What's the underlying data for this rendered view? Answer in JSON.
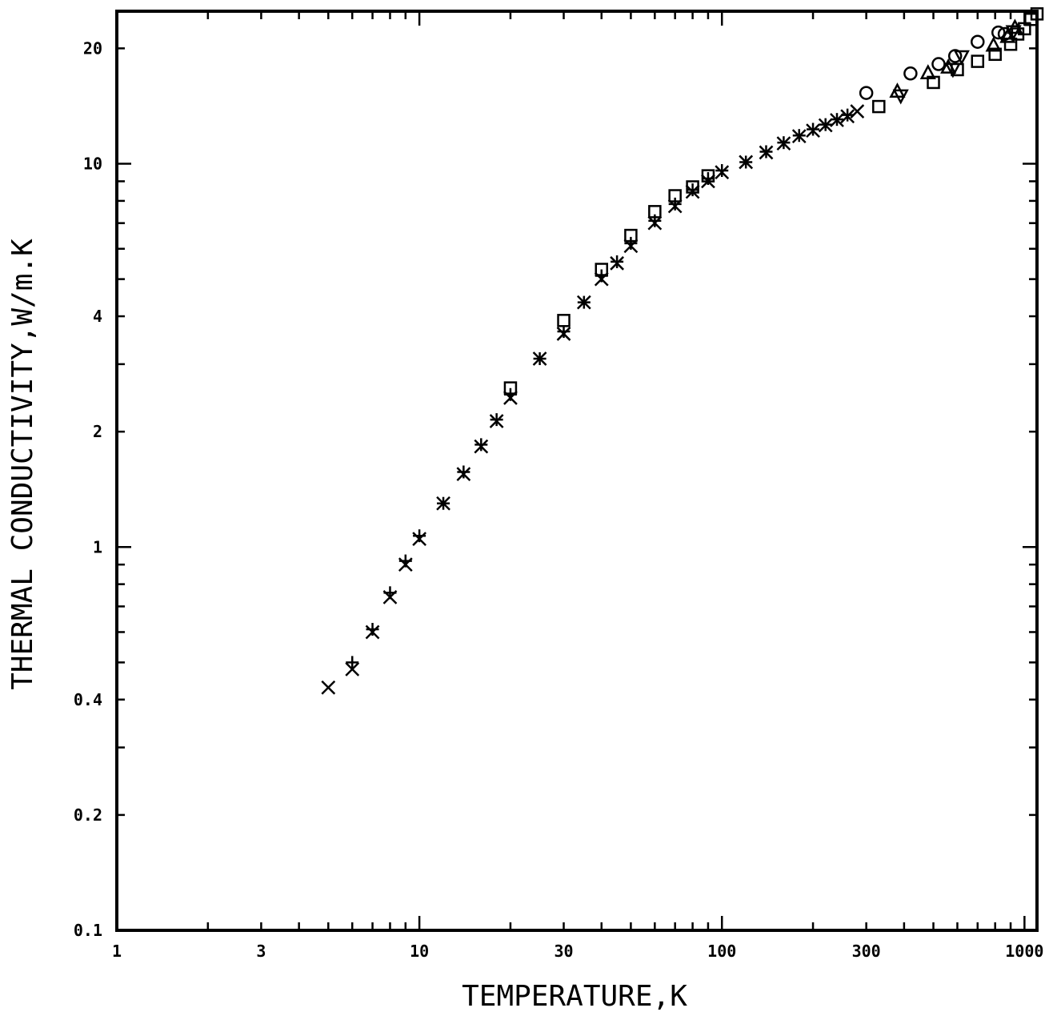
{
  "chart_data": {
    "type": "scatter",
    "xlabel": "TEMPERATURE,K",
    "ylabel": "THERMAL CONDUCTIVITY,W/m.K",
    "xscale": "log",
    "yscale": "log",
    "xlim": [
      1,
      1100
    ],
    "ylim": [
      0.1,
      25
    ],
    "grid": false,
    "xticks": [
      1,
      3,
      10,
      30,
      100,
      300,
      1000
    ],
    "xtick_labels": [
      "1",
      "3",
      "10",
      "30",
      "100",
      "300",
      "1000"
    ],
    "yticks": [
      0.1,
      0.2,
      0.4,
      1,
      2,
      4,
      10,
      20
    ],
    "ytick_labels": [
      "0.1",
      "0.2",
      "0.4",
      "1",
      "2",
      "4",
      "10",
      "20"
    ],
    "series": [
      {
        "marker": "x",
        "x": [
          5,
          6,
          7,
          8,
          9,
          10,
          12,
          14,
          16,
          18,
          20,
          25,
          30,
          35,
          40,
          45,
          50,
          60,
          70,
          80,
          90,
          100,
          120,
          140,
          160,
          180,
          200,
          220,
          240,
          260,
          280
        ],
        "y": [
          0.43,
          0.48,
          0.6,
          0.74,
          0.9,
          1.05,
          1.3,
          1.55,
          1.83,
          2.13,
          2.45,
          3.1,
          3.6,
          4.35,
          5.0,
          5.5,
          6.1,
          7.0,
          7.75,
          8.45,
          9.0,
          9.5,
          10.1,
          10.7,
          11.3,
          11.8,
          12.2,
          12.6,
          13.0,
          13.3,
          13.7
        ]
      },
      {
        "marker": "+",
        "x": [
          6,
          7,
          8,
          9,
          10,
          12,
          14,
          16,
          18,
          20,
          25,
          30,
          35,
          40,
          45,
          50,
          60,
          70,
          80,
          90,
          100,
          120,
          140,
          160,
          180,
          200,
          220,
          240,
          260
        ],
        "y": [
          0.5,
          0.61,
          0.76,
          0.92,
          1.07,
          1.3,
          1.57,
          1.85,
          2.15,
          2.5,
          3.1,
          3.65,
          4.35,
          5.1,
          5.55,
          6.2,
          7.1,
          7.85,
          8.55,
          9.15,
          9.6,
          10.1,
          10.75,
          11.35,
          11.85,
          12.3,
          12.65,
          13.05,
          13.4
        ]
      },
      {
        "marker": "square",
        "x": [
          20,
          30,
          40,
          50,
          60,
          70,
          80,
          90,
          330,
          500,
          600,
          700,
          800,
          900,
          950,
          1000,
          1050,
          1100
        ],
        "y": [
          2.6,
          3.9,
          5.3,
          6.5,
          7.5,
          8.25,
          8.7,
          9.3,
          14.1,
          16.3,
          17.6,
          18.5,
          19.3,
          20.5,
          21.8,
          22.5,
          23.8,
          24.6
        ]
      },
      {
        "marker": "circle",
        "x": [
          300,
          420,
          520,
          590,
          700,
          820,
          860
        ],
        "y": [
          15.3,
          17.2,
          18.2,
          19.1,
          20.8,
          22.0,
          21.8
        ]
      },
      {
        "marker": "triangle-up",
        "x": [
          380,
          480,
          560,
          790,
          880,
          930
        ],
        "y": [
          15.4,
          17.2,
          17.8,
          20.3,
          21.4,
          22.6
        ]
      },
      {
        "marker": "triangle-down",
        "x": [
          390,
          580,
          620,
          920
        ],
        "y": [
          15.1,
          17.7,
          19.1,
          22.2
        ]
      }
    ]
  }
}
